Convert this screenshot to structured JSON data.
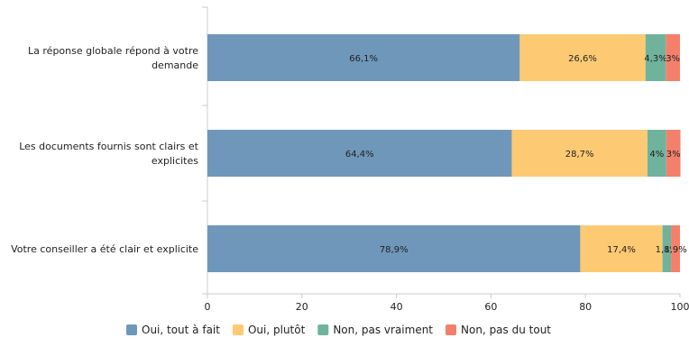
{
  "chart_data": {
    "type": "bar",
    "orientation": "horizontal",
    "stacked": true,
    "categories": [
      [
        "La réponse globale répond à votre",
        "demande"
      ],
      [
        "Les documents fournis sont clairs et",
        "explicites"
      ],
      [
        "Votre conseiller a été clair et explicite"
      ]
    ],
    "series": [
      {
        "name": "Oui, tout à fait",
        "color": "#6f97ba",
        "values": [
          66.1,
          64.4,
          78.9
        ],
        "labels": [
          "66,1%",
          "64,4%",
          "78,9%"
        ]
      },
      {
        "name": "Oui, plutôt",
        "color": "#fdca73",
        "values": [
          26.6,
          28.7,
          17.4
        ],
        "labels": [
          "26,6%",
          "28,7%",
          "17,4%"
        ]
      },
      {
        "name": "Non, pas vraiment",
        "color": "#6fb39c",
        "values": [
          4.3,
          4.0,
          1.8
        ],
        "labels": [
          "4,3%",
          "4%",
          "1,8%"
        ]
      },
      {
        "name": "Non, pas du tout",
        "color": "#f4806c",
        "values": [
          3.0,
          3.0,
          1.9
        ],
        "labels": [
          "3%",
          "3%",
          "1,9%"
        ]
      }
    ],
    "xticks": [
      "0",
      "20",
      "40",
      "60",
      "80",
      "100"
    ],
    "xlim": [
      0,
      100
    ],
    "grid": false,
    "legend_position": "bottom"
  }
}
